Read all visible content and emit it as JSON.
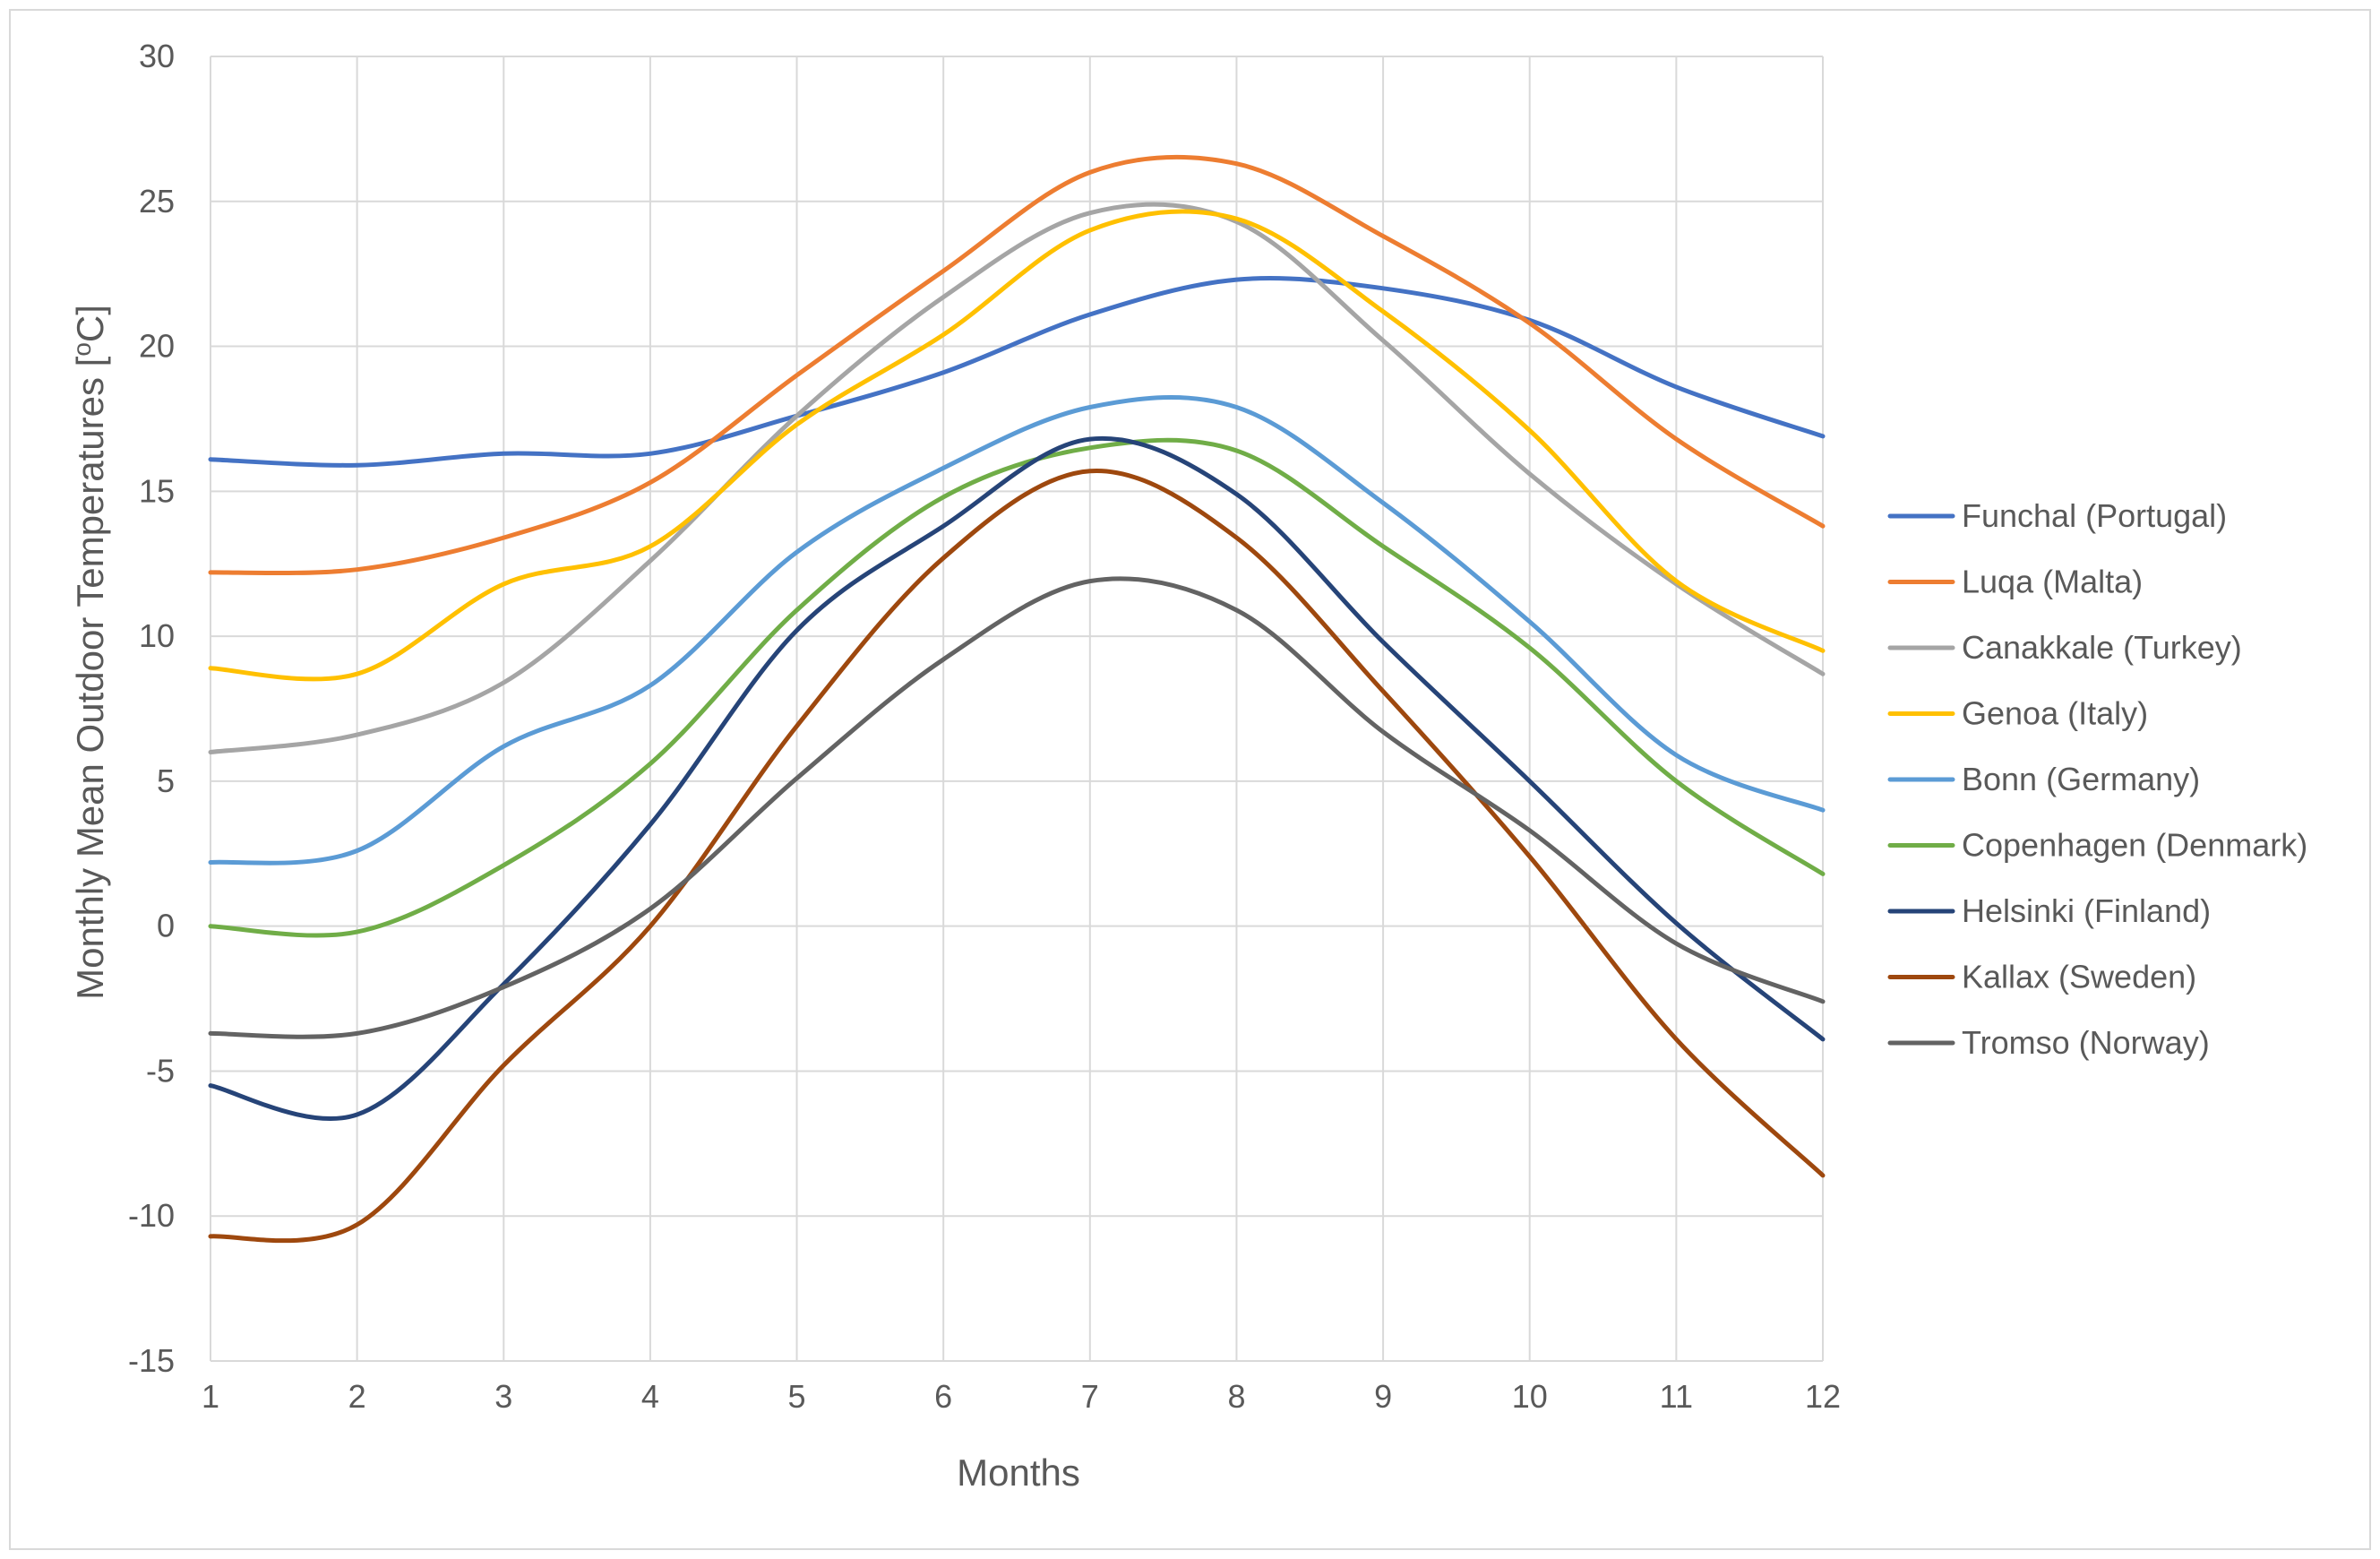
{
  "chart_data": {
    "type": "line",
    "title": "",
    "xlabel": "Months",
    "ylabel": "Monthly Mean Outdoor Temperatures [oC]",
    "ylabel_parts": {
      "before": "Monthly Mean Outdoor Temperatures [",
      "sup": "o",
      "after": "C]"
    },
    "x": [
      1,
      2,
      3,
      4,
      5,
      6,
      7,
      8,
      9,
      10,
      11,
      12
    ],
    "xlim": [
      1,
      12
    ],
    "ylim": [
      -15,
      30
    ],
    "yticks": [
      -15,
      -10,
      -5,
      0,
      5,
      10,
      15,
      20,
      25,
      30
    ],
    "grid": true,
    "legend_position": "right",
    "series": [
      {
        "name": "Funchal (Portugal)",
        "color": "#4472c4",
        "values": [
          16.1,
          15.9,
          16.3,
          16.3,
          17.6,
          19.1,
          21.1,
          22.3,
          22.0,
          20.9,
          18.6,
          16.9
        ]
      },
      {
        "name": "Luqa (Malta)",
        "color": "#ed7d31",
        "values": [
          12.2,
          12.3,
          13.4,
          15.3,
          19.0,
          22.6,
          26.0,
          26.3,
          23.8,
          20.8,
          16.8,
          13.8
        ]
      },
      {
        "name": "Canakkale (Turkey)",
        "color": "#a5a5a5",
        "values": [
          6.0,
          6.6,
          8.4,
          12.6,
          17.6,
          21.7,
          24.6,
          24.3,
          20.2,
          15.6,
          11.8,
          8.7
        ]
      },
      {
        "name": "Genoa (Italy)",
        "color": "#ffc000",
        "values": [
          8.9,
          8.7,
          11.8,
          13.1,
          17.3,
          20.4,
          24.0,
          24.4,
          21.2,
          17.1,
          11.9,
          9.5
        ]
      },
      {
        "name": "Bonn (Germany)",
        "color": "#5b9bd5",
        "values": [
          2.2,
          2.6,
          6.2,
          8.3,
          12.9,
          15.8,
          17.9,
          17.9,
          14.6,
          10.5,
          5.9,
          4.0
        ]
      },
      {
        "name": "Copenhagen (Denmark)",
        "color": "#70ad47",
        "values": [
          0.0,
          -0.2,
          2.1,
          5.6,
          10.9,
          14.8,
          16.5,
          16.4,
          13.1,
          9.6,
          5.0,
          1.8
        ]
      },
      {
        "name": "Helsinki (Finland)",
        "color": "#264478",
        "values": [
          -5.5,
          -6.5,
          -2.0,
          3.5,
          10.2,
          13.8,
          16.8,
          14.9,
          9.8,
          5.0,
          0.1,
          -3.9
        ]
      },
      {
        "name": "Kallax (Sweden)",
        "color": "#9e480e",
        "values": [
          -10.7,
          -10.3,
          -4.8,
          0.0,
          6.9,
          12.7,
          15.7,
          13.4,
          8.1,
          2.4,
          -3.9,
          -8.6
        ]
      },
      {
        "name": "Tromso (Norway)",
        "color": "#636363",
        "values": [
          -3.7,
          -3.7,
          -2.1,
          0.6,
          5.1,
          9.2,
          11.9,
          10.9,
          6.7,
          3.3,
          -0.6,
          -2.6
        ]
      }
    ]
  }
}
